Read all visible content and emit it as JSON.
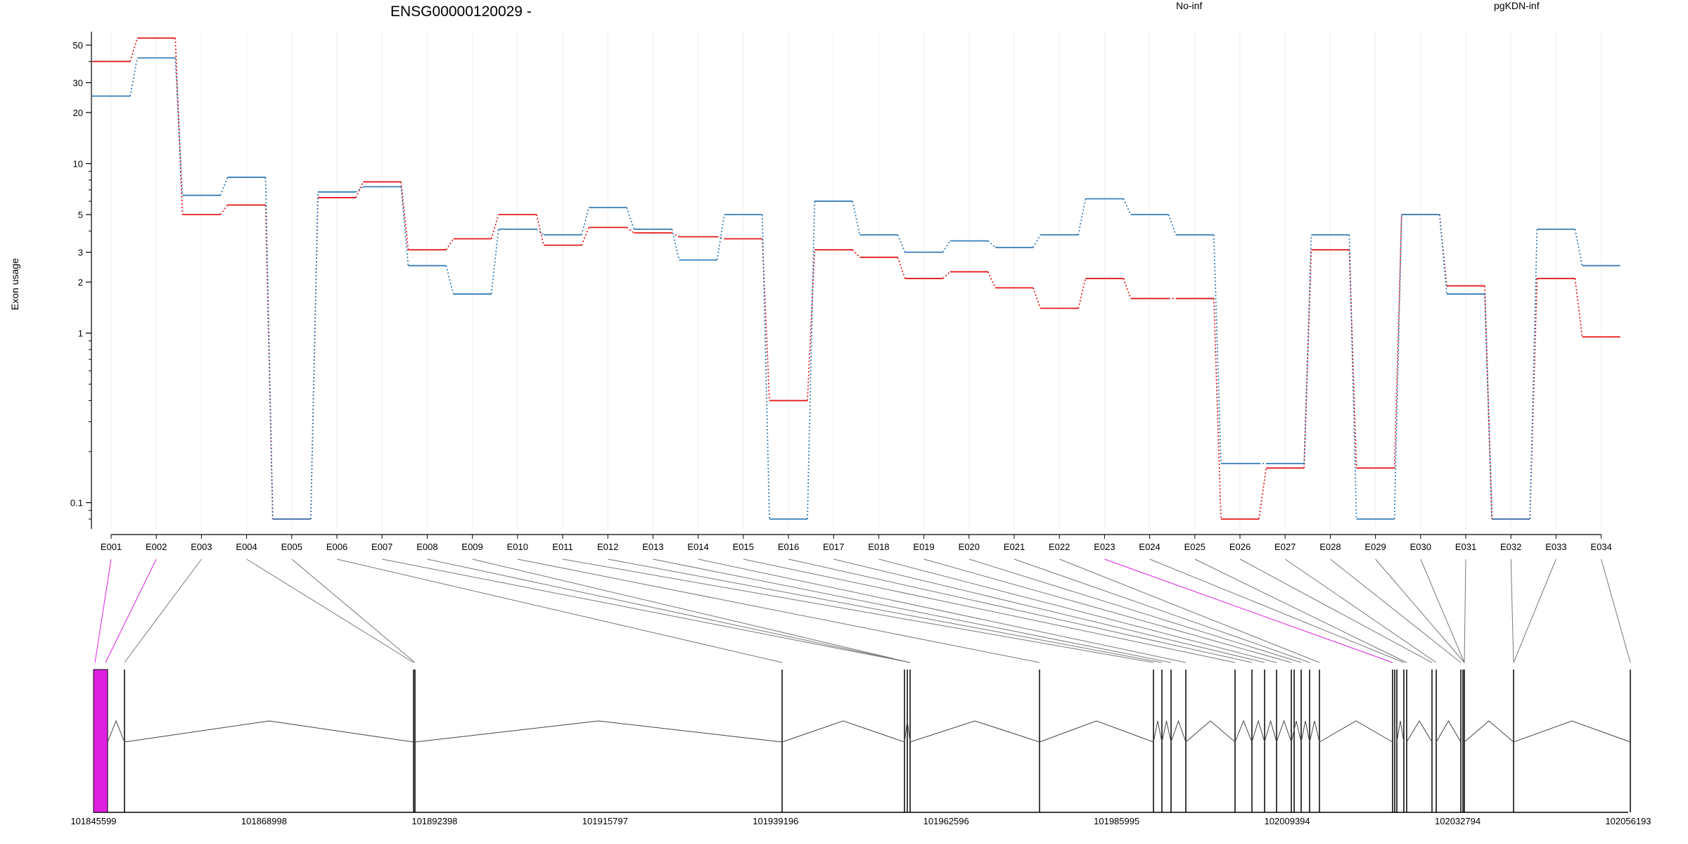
{
  "chart_data": {
    "type": "line",
    "title": "ENSG00000120029 -",
    "ylabel": "Exon usage",
    "xlabel": "",
    "y_scale": "log",
    "ylim": [
      0.07,
      60
    ],
    "y_ticks": [
      {
        "value": 0.1,
        "label": "0.1"
      },
      {
        "value": 1,
        "label": "1"
      },
      {
        "value": 2,
        "label": "2"
      },
      {
        "value": 3,
        "label": "3"
      },
      {
        "value": 5,
        "label": "5"
      },
      {
        "value": 10,
        "label": "10"
      },
      {
        "value": 20,
        "label": "20"
      },
      {
        "value": 30,
        "label": "30"
      },
      {
        "value": 50,
        "label": "50"
      }
    ],
    "legend_position": "top",
    "categories": [
      "E001",
      "E002",
      "E003",
      "E004",
      "E005",
      "E006",
      "E007",
      "E008",
      "E009",
      "E010",
      "E011",
      "E012",
      "E013",
      "E014",
      "E015",
      "E016",
      "E017",
      "E018",
      "E019",
      "E020",
      "E021",
      "E022",
      "E023",
      "E024",
      "E025",
      "E026",
      "E027",
      "E028",
      "E029",
      "E030",
      "E031",
      "E032",
      "E033",
      "E034"
    ],
    "series": [
      {
        "name": "No-inf",
        "color": "#e41a1c",
        "values": [
          40,
          55,
          5.0,
          5.7,
          0.08,
          6.3,
          7.8,
          3.1,
          3.6,
          5.0,
          3.3,
          4.2,
          3.9,
          3.7,
          3.6,
          0.4,
          3.1,
          2.8,
          2.1,
          2.3,
          1.85,
          1.4,
          2.1,
          1.6,
          1.6,
          0.08,
          0.16,
          3.1,
          0.16,
          5.0,
          1.9,
          0.08,
          2.1,
          0.95
        ]
      },
      {
        "name": "pgKDN-inf",
        "color": "#377eb8",
        "values": [
          25,
          42,
          6.5,
          8.3,
          0.08,
          6.8,
          7.3,
          2.5,
          1.7,
          4.1,
          3.8,
          5.5,
          4.1,
          2.7,
          5.0,
          0.08,
          6.0,
          3.8,
          3.0,
          3.5,
          3.2,
          3.8,
          6.2,
          5.0,
          3.8,
          0.17,
          0.17,
          3.8,
          0.08,
          5.0,
          1.7,
          0.08,
          4.1,
          2.5
        ]
      }
    ],
    "highlight_color": "#e020e0",
    "genomic_axis": {
      "tick_labels": [
        "101845599",
        "101868998",
        "101892398",
        "101915797",
        "101939196",
        "101962596",
        "101985995",
        "102009394",
        "102032794",
        "102056193"
      ],
      "range": [
        101845599,
        102056193
      ]
    }
  }
}
